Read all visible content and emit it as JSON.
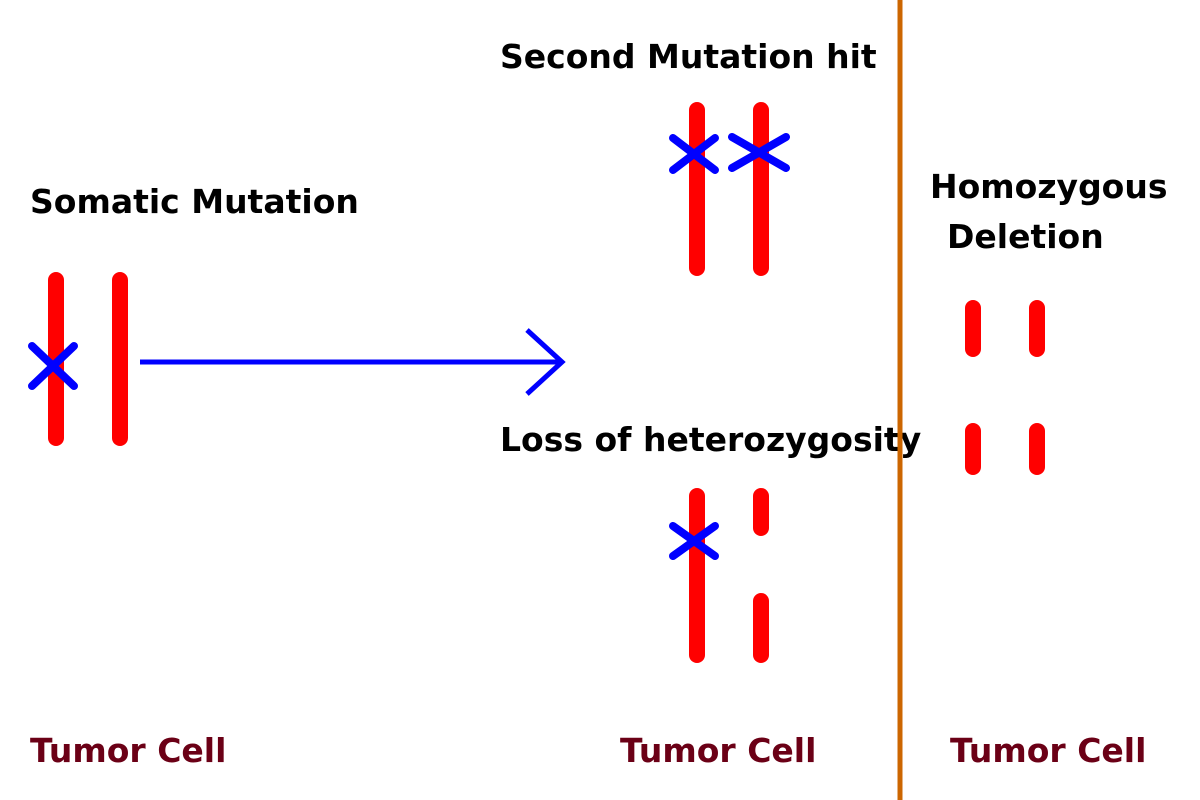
{
  "labels": {
    "somatic_mutation": "Somatic Mutation",
    "second_mutation_hit": "Second Mutation hit",
    "loss_of_heterozygosity": "Loss of heterozygosity",
    "homozygous_line1": "Homozygous",
    "homozygous_line2": "Deletion",
    "tumor_cell_1": "Tumor Cell",
    "tumor_cell_2": "Tumor Cell",
    "tumor_cell_3": "Tumor Cell"
  },
  "colors": {
    "chromosome": "#ff0000",
    "mutation_mark": "#0000ff",
    "arrow": "#0000ff",
    "divider": "#cc6600",
    "cell_label": "#6b0016",
    "text": "#000000"
  }
}
